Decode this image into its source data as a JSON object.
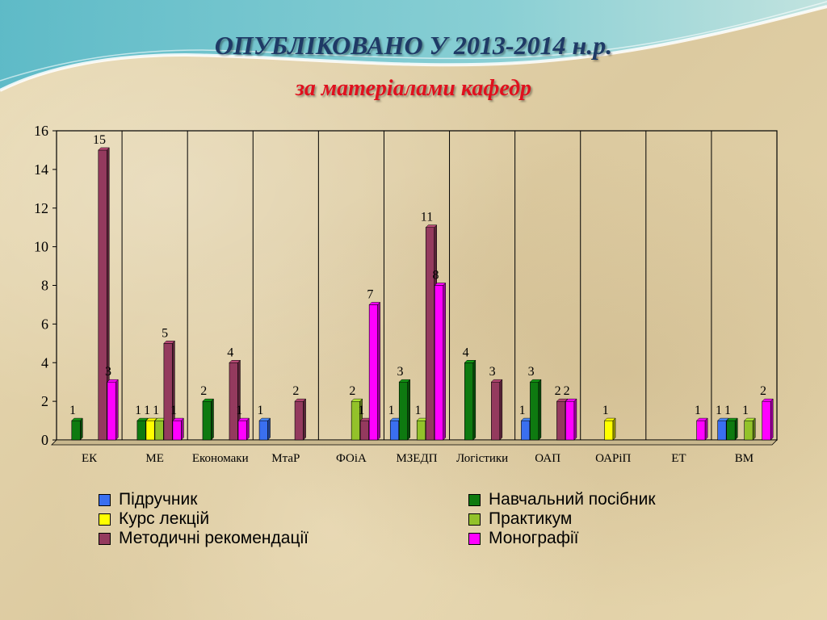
{
  "slide": {
    "title": "ОПУБЛІКОВАНО  У 2013-2014 н.р.",
    "subtitle": "за матеріалами  кафедр"
  },
  "colors": {
    "Підручник": "#3a6ff0",
    "Курс лекцій": "#ffff00",
    "Методичні рекомендації": "#943a5e",
    "Навчальний посібник": "#0e7a10",
    "Практикум": "#93c22a",
    "Монографії": "#ff00ff"
  },
  "chart_data": {
    "type": "bar",
    "categories": [
      "ЕК",
      "МЕ",
      "Економаки",
      "МтаР",
      "ФОіА",
      "МЗЕДП",
      "Логістики",
      "ОАП",
      "ОАРіП",
      "ЕТ",
      "ВМ"
    ],
    "series": [
      {
        "name": "Підручник",
        "values": [
          0,
          0,
          0,
          1,
          0,
          1,
          0,
          1,
          0,
          0,
          1
        ]
      },
      {
        "name": "Навчальний посібник",
        "values": [
          1,
          1,
          2,
          0,
          0,
          3,
          4,
          3,
          0,
          0,
          1
        ]
      },
      {
        "name": "Курс лекцій",
        "values": [
          0,
          1,
          0,
          0,
          0,
          0,
          0,
          0,
          1,
          0,
          0
        ]
      },
      {
        "name": "Практикум",
        "values": [
          0,
          1,
          0,
          0,
          2,
          1,
          0,
          0,
          0,
          0,
          1
        ]
      },
      {
        "name": "Методичні рекомендації",
        "values": [
          15,
          5,
          4,
          2,
          1,
          11,
          3,
          2,
          0,
          0,
          0
        ]
      },
      {
        "name": "Монографії",
        "values": [
          3,
          1,
          1,
          0,
          7,
          8,
          0,
          2,
          0,
          1,
          2
        ]
      }
    ],
    "ylim": [
      0,
      16
    ],
    "yticks": [
      "0",
      "2",
      "4",
      "6",
      "8",
      "10",
      "12",
      "14",
      "16"
    ],
    "grid": "vertical",
    "legend_position": "bottom"
  },
  "legend": {
    "left_column": [
      "Підручник",
      "Курс лекцій",
      "Методичні рекомендації"
    ],
    "right_column": [
      "Навчальний посібник",
      "Практикум",
      "Монографії"
    ]
  }
}
